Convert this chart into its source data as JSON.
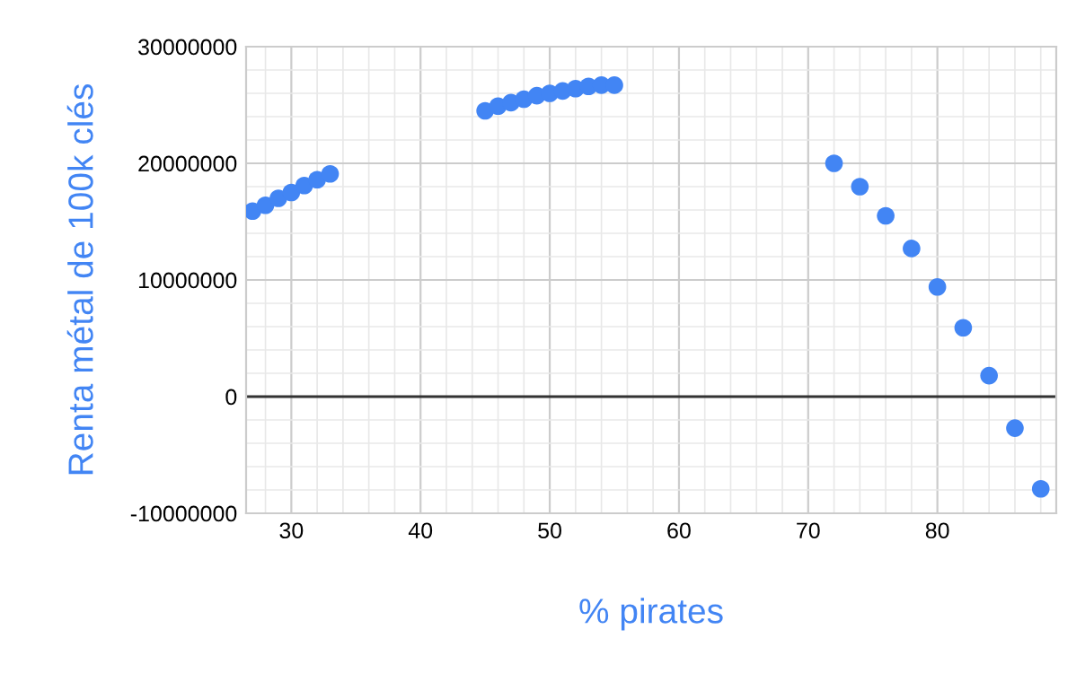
{
  "chart_data": {
    "type": "scatter",
    "xlabel": "% pirates",
    "ylabel": "Renta métal de 100k clés",
    "x": [
      27,
      28,
      29,
      30,
      31,
      32,
      33,
      45,
      46,
      47,
      48,
      49,
      50,
      51,
      52,
      53,
      54,
      55,
      72,
      74,
      76,
      78,
      80,
      82,
      84,
      86,
      88
    ],
    "series": [
      {
        "color": "#4285f4",
        "values": [
          15900000,
          16400000,
          17000000,
          17500000,
          18100000,
          18600000,
          19100000,
          24500000,
          24900000,
          25200000,
          25500000,
          25800000,
          26000000,
          26200000,
          26400000,
          26600000,
          26700000,
          26700000,
          20000000,
          18000000,
          15500000,
          12700000,
          9400000,
          5900000,
          1800000,
          -2700000,
          -7900000
        ]
      }
    ],
    "marker": "circle",
    "grid": true,
    "xlim": [
      26.5,
      89.2
    ],
    "xticks": [
      30,
      40,
      50,
      60,
      70,
      80
    ],
    "ylim": [
      -10000000,
      30000000
    ],
    "yticks": [
      -10000000,
      0,
      10000000,
      20000000,
      30000000
    ],
    "ref_lines": [
      {
        "axis": "y",
        "value": 0,
        "color": "#333333"
      }
    ]
  }
}
